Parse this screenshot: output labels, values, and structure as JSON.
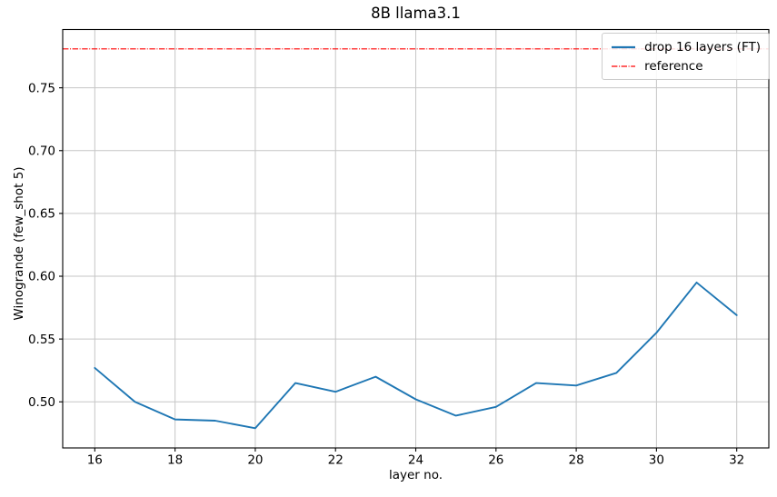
{
  "chart_data": {
    "type": "line",
    "title": "8B llama3.1",
    "xlabel": "layer no.",
    "ylabel": "Winogrande (few_shot 5)",
    "xlim": [
      15.2,
      32.8
    ],
    "ylim": [
      0.4633,
      0.7964
    ],
    "x_ticks": [
      16,
      18,
      20,
      22,
      24,
      26,
      28,
      30,
      32
    ],
    "y_ticks": [
      0.5,
      0.55,
      0.6,
      0.65,
      0.7,
      0.75
    ],
    "grid": true,
    "grid_color": "#c6c6c6",
    "spine_color": "#000000",
    "legend_position": "upper right",
    "series": [
      {
        "name": "drop 16 layers (FT)",
        "kind": "line",
        "color": "#1f77b4",
        "style": "solid",
        "x": [
          16,
          17,
          18,
          19,
          20,
          21,
          22,
          23,
          24,
          25,
          26,
          27,
          28,
          29,
          30,
          31,
          32
        ],
        "y": [
          0.527,
          0.5,
          0.486,
          0.485,
          0.479,
          0.515,
          0.508,
          0.52,
          0.502,
          0.489,
          0.496,
          0.515,
          0.513,
          0.523,
          0.555,
          0.595,
          0.569
        ]
      },
      {
        "name": "reference",
        "kind": "hline",
        "color": "#ff0000",
        "style": "dashdot",
        "y": 0.781
      }
    ]
  }
}
